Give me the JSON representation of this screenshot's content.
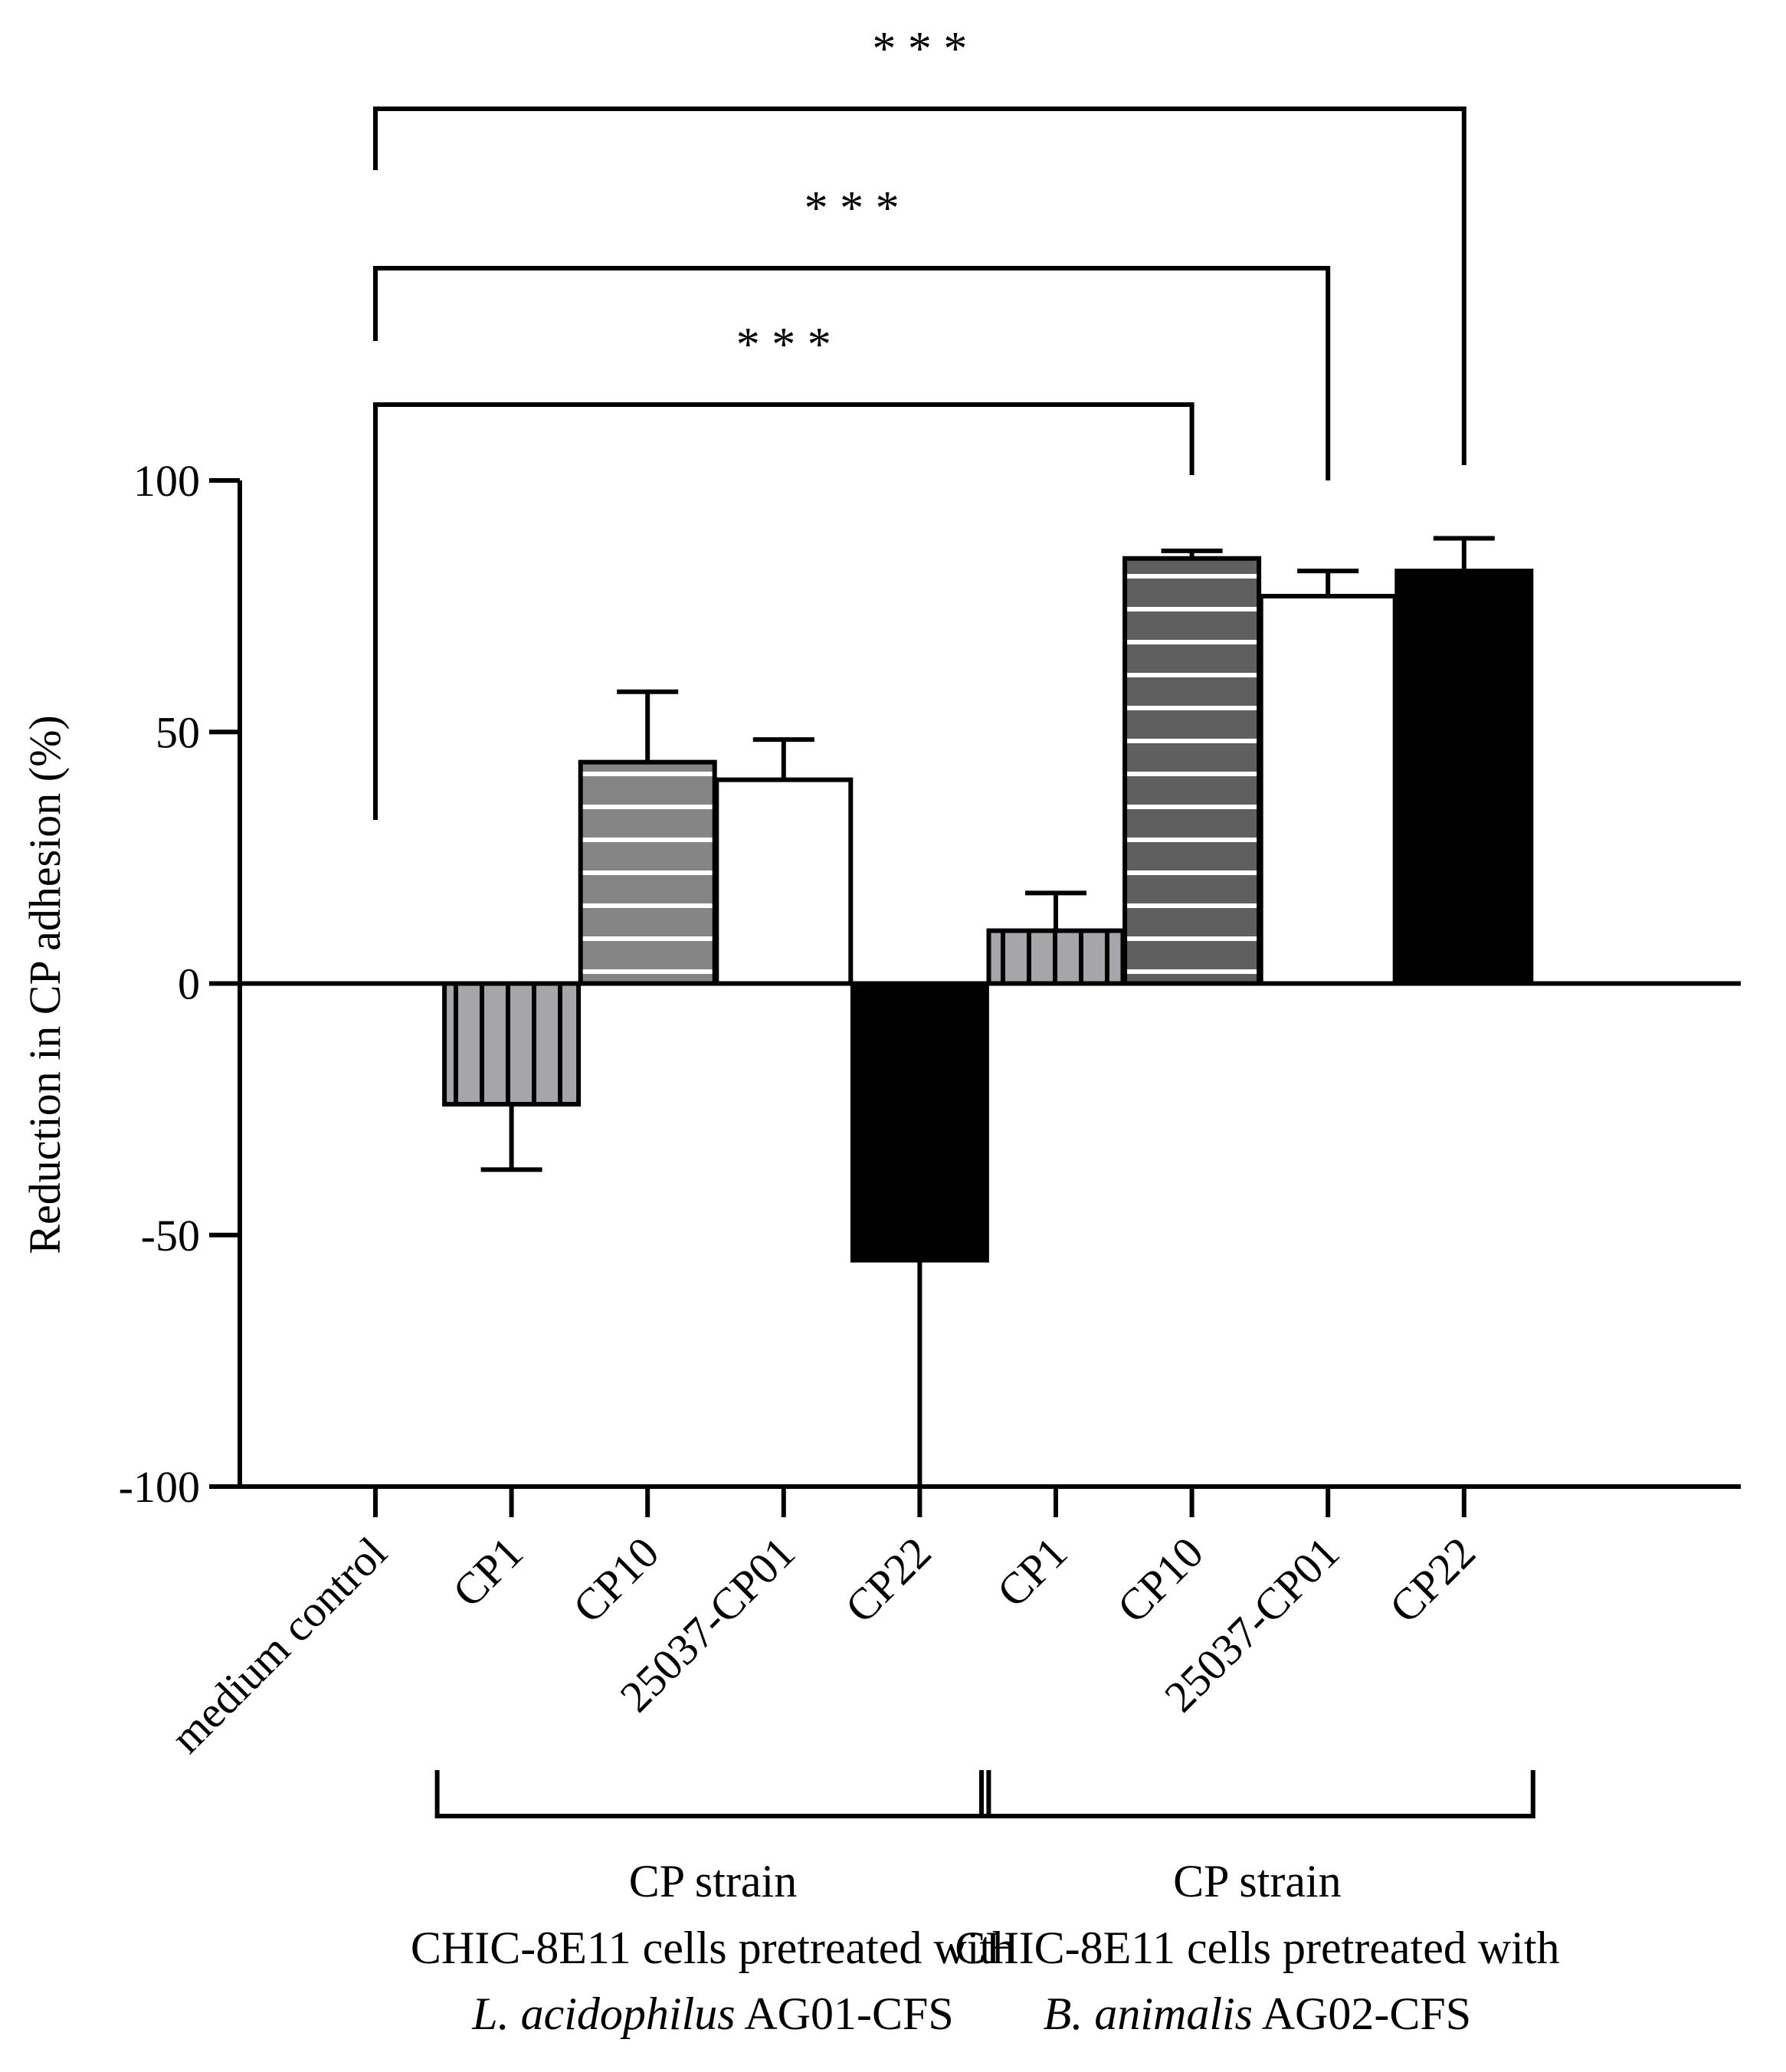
{
  "chart_data": {
    "type": "bar",
    "ylabel": "Reduction in CP adhesion (%)",
    "ylim": [
      -100,
      100
    ],
    "yticks": [
      100,
      50,
      0,
      -50,
      -100
    ],
    "ytick_labels": [
      "100",
      "50",
      "0",
      "-50",
      "-100"
    ],
    "bars": [
      {
        "label": "medium control",
        "value": 0,
        "error": 0,
        "pattern": "none",
        "fill": "#ffffff"
      },
      {
        "label": "CP1",
        "value": -24,
        "error": 13,
        "pattern": "vertical",
        "fill": "#a6a6aa"
      },
      {
        "label": "CP10",
        "value": 44,
        "error": 14,
        "pattern": "horizontal",
        "fill": "#858585"
      },
      {
        "label": "25037-CP01",
        "value": 40.5,
        "error": 8,
        "pattern": "none",
        "fill": "#ffffff"
      },
      {
        "label": "CP22",
        "value": -55,
        "error": 45,
        "pattern": "none",
        "fill": "#000000"
      },
      {
        "label": "CP1",
        "value": 10.5,
        "error": 7.5,
        "pattern": "vertical",
        "fill": "#a6a6aa"
      },
      {
        "label": "CP10",
        "value": 84.5,
        "error": 1.5,
        "pattern": "horizontal",
        "fill": "#5f5f5f"
      },
      {
        "label": "25037-CP01",
        "value": 77,
        "error": 5,
        "pattern": "none",
        "fill": "#ffffff"
      },
      {
        "label": "CP22",
        "value": 82,
        "error": 6.5,
        "pattern": "none",
        "fill": "#000000"
      }
    ],
    "significance": [
      {
        "from": 0,
        "to": 6,
        "label": "* * *"
      },
      {
        "from": 0,
        "to": 7,
        "label": "* * *"
      },
      {
        "from": 0,
        "to": 8,
        "label": "* * *"
      }
    ],
    "groups": [
      {
        "from": 1,
        "to": 4,
        "line1": "CP strain",
        "line2": "CHIC-8E11 cells pretreated with",
        "line3_italic": "L. acidophilus",
        "line3_rest": " AG01-CFS"
      },
      {
        "from": 5,
        "to": 8,
        "line1": "CP strain",
        "line2": "CHIC-8E11 cells pretreated with",
        "line3_italic": "B. animalis",
        "line3_rest": "  AG02-CFS"
      }
    ]
  }
}
